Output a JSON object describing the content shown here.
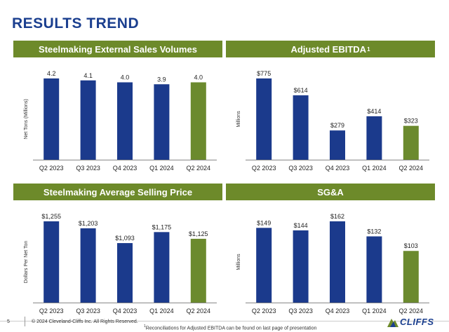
{
  "page": {
    "title": "RESULTS TREND",
    "page_number": "5",
    "copyright": "© 2024 Cleveland-Cliffs Inc. All Rights Reserved.",
    "footnote_marker": "1",
    "footnote": "Reconciliations for Adjusted EBITDA can be found on last page of presentation",
    "logo_text": "CLIFFS"
  },
  "colors": {
    "title": "#1b3f8f",
    "header_bg": "#6d8a2a",
    "bar_primary": "#1b3a8c",
    "bar_latest": "#6b8a2e"
  },
  "chart_data": [
    {
      "type": "bar",
      "title": "Steelmaking External Sales Volumes",
      "title_sup": "",
      "ylabel": "Net Tons (Millions)",
      "categories": [
        "Q2 2023",
        "Q3 2023",
        "Q4 2023",
        "Q1 2024",
        "Q2 2024"
      ],
      "values": [
        4.2,
        4.1,
        4.0,
        3.9,
        4.0
      ],
      "data_labels": [
        "4.2",
        "4.1",
        "4.0",
        "3.9",
        "4.0"
      ],
      "ylim": [
        0,
        4.2
      ],
      "grid": false,
      "highlight_last": true
    },
    {
      "type": "bar",
      "title": "Adjusted EBITDA",
      "title_sup": "1",
      "ylabel": "Millions",
      "categories": [
        "Q2 2023",
        "Q3 2023",
        "Q4 2023",
        "Q1 2024",
        "Q2 2024"
      ],
      "values": [
        775,
        614,
        279,
        414,
        323
      ],
      "data_labels": [
        "$775",
        "$614",
        "$279",
        "$414",
        "$323"
      ],
      "ylim": [
        0,
        775
      ],
      "grid": false,
      "highlight_last": true
    },
    {
      "type": "bar",
      "title": "Steelmaking Average Selling Price",
      "title_sup": "",
      "ylabel": "Dollars Per Net Ton",
      "categories": [
        "Q2 2023",
        "Q3 2023",
        "Q4 2023",
        "Q1 2024",
        "Q2 2024"
      ],
      "values": [
        1255,
        1203,
        1093,
        1175,
        1125
      ],
      "data_labels": [
        "$1,255",
        "$1,203",
        "$1,093",
        "$1,175",
        "$1,125"
      ],
      "ylim": [
        650,
        1255
      ],
      "grid": false,
      "highlight_last": true
    },
    {
      "type": "bar",
      "title": "SG&A",
      "title_sup": "",
      "ylabel": "Millions",
      "categories": [
        "Q2 2023",
        "Q3 2023",
        "Q4 2023",
        "Q1 2024",
        "Q2 2024"
      ],
      "values": [
        149,
        144,
        162,
        132,
        103
      ],
      "data_labels": [
        "$149",
        "$144",
        "$162",
        "$132",
        "$103"
      ],
      "ylim": [
        0,
        162
      ],
      "grid": false,
      "highlight_last": true
    }
  ]
}
